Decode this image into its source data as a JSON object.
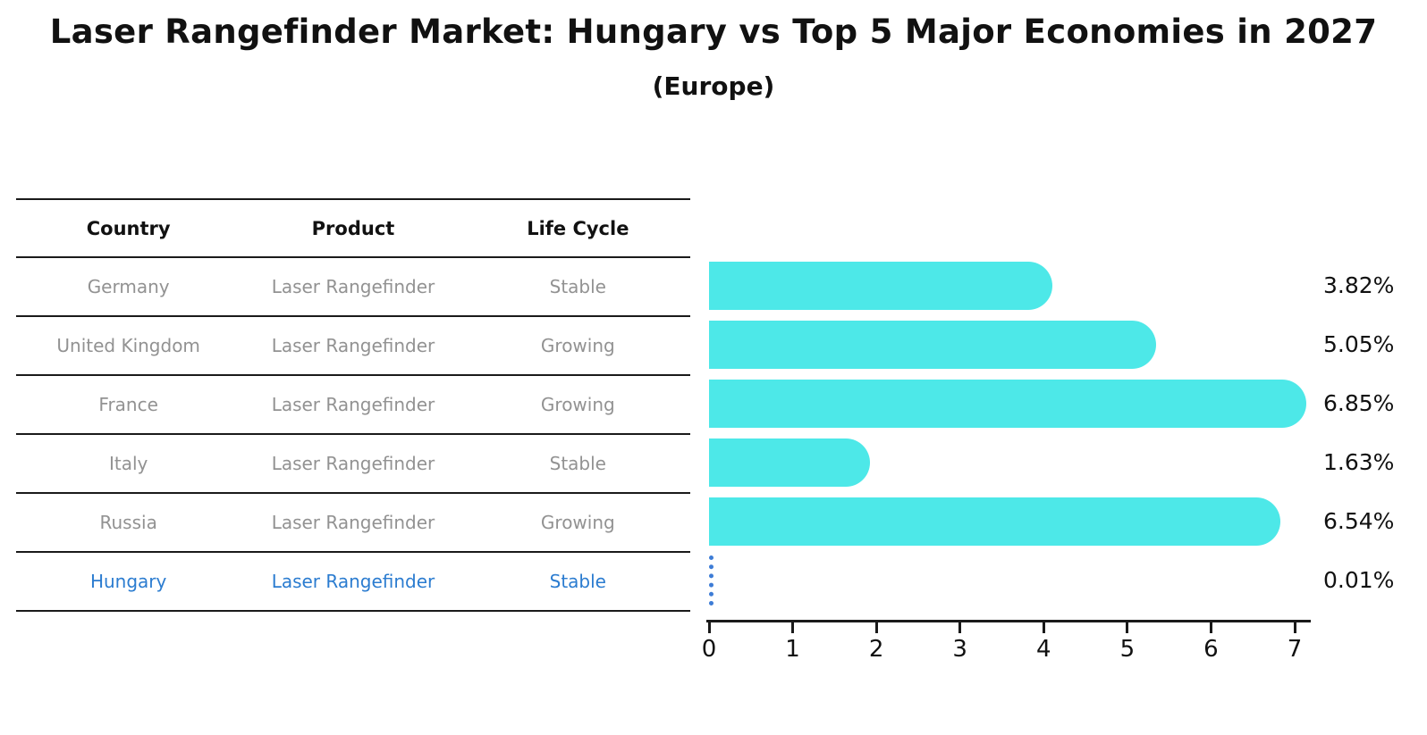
{
  "title": "Laser Rangefinder Market: Hungary vs Top 5 Major Economies in 2027",
  "subtitle": "(Europe)",
  "table": {
    "headers": [
      "Country",
      "Product",
      "Life Cycle"
    ],
    "rows": [
      {
        "country": "Germany",
        "product": "Laser Rangefinder",
        "life_cycle": "Stable",
        "highlight": false
      },
      {
        "country": "United Kingdom",
        "product": "Laser Rangefinder",
        "life_cycle": "Growing",
        "highlight": false
      },
      {
        "country": "France",
        "product": "Laser Rangefinder",
        "life_cycle": "Growing",
        "highlight": false
      },
      {
        "country": "Italy",
        "product": "Laser Rangefinder",
        "life_cycle": "Stable",
        "highlight": false
      },
      {
        "country": "Russia",
        "product": "Laser Rangefinder",
        "life_cycle": "Growing",
        "highlight": false
      },
      {
        "country": "Hungary",
        "product": "Laser Rangefinder",
        "life_cycle": "Stable",
        "highlight": true
      }
    ]
  },
  "chart_data": {
    "type": "bar",
    "orientation": "horizontal",
    "title": "Laser Rangefinder Market: Hungary vs Top 5 Major Economies in 2027",
    "subtitle": "(Europe)",
    "categories": [
      "Germany",
      "United Kingdom",
      "France",
      "Italy",
      "Russia",
      "Hungary"
    ],
    "values": [
      3.82,
      5.05,
      6.85,
      1.63,
      6.54,
      0.01
    ],
    "value_labels": [
      "3.82%",
      "5.05%",
      "6.85%",
      "1.63%",
      "6.54%",
      "0.01%"
    ],
    "xlim": [
      0,
      7
    ],
    "x_ticks": [
      "0",
      "1",
      "2",
      "3",
      "4",
      "5",
      "6",
      "7"
    ],
    "xlabel": "",
    "ylabel": "",
    "grid": false,
    "legend": false,
    "highlight_index": 5,
    "bar_color": "#4DE8E8",
    "highlight_bar_color": "#3D7CD6"
  },
  "colors": {
    "background": "#FFFFFF",
    "title_text": "#111111",
    "header_text": "#111111",
    "body_text": "#929292",
    "highlight_text": "#2B7CD0",
    "table_line": "#1A1A1A",
    "axis": "#1A1A1A",
    "value_label_text": "#111111"
  }
}
